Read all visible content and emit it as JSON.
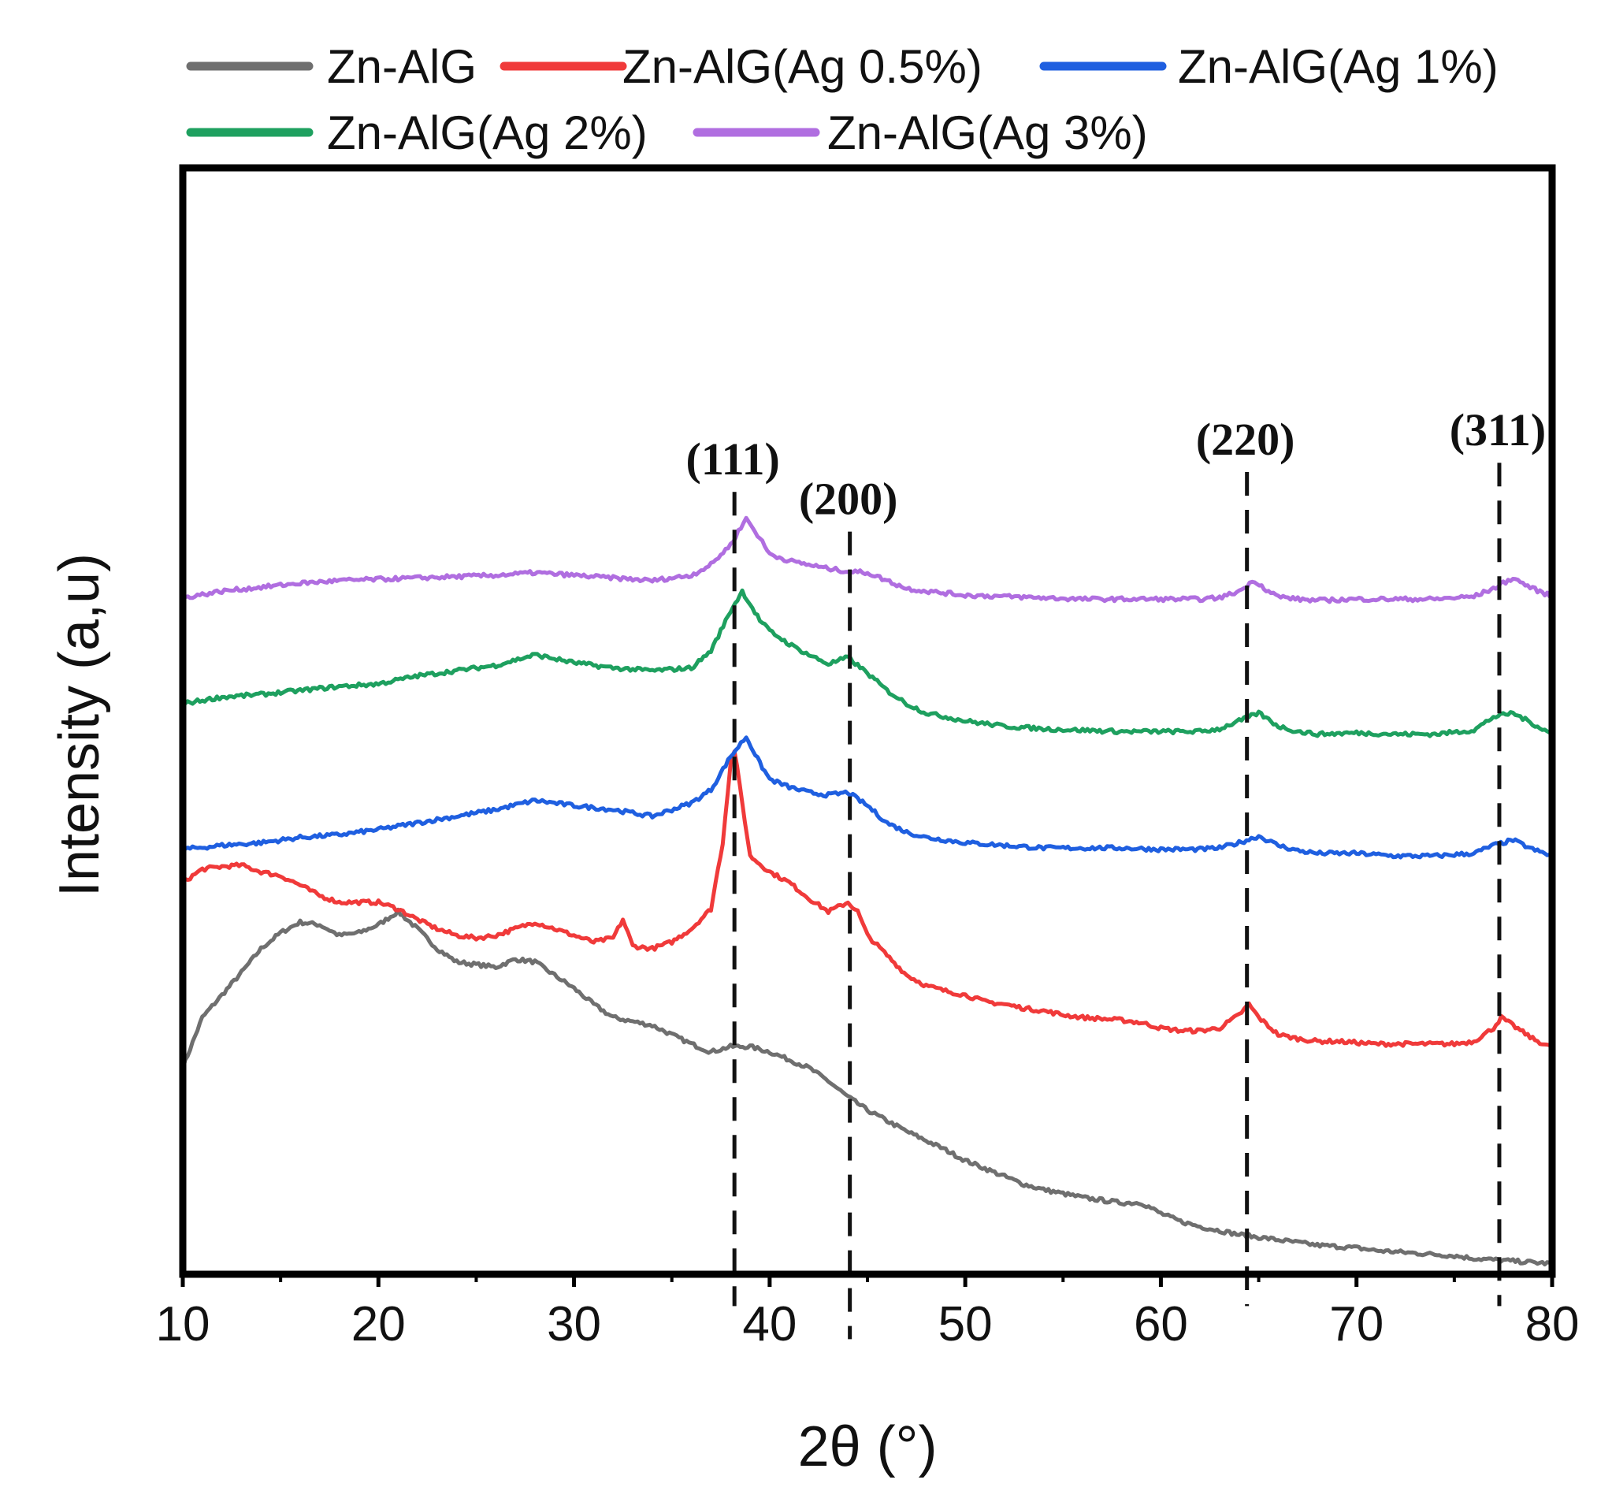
{
  "chart_data": {
    "type": "line",
    "title": "",
    "xlabel": "2θ (°)",
    "ylabel": "Intensity (a,u)",
    "xlim": [
      10,
      80
    ],
    "ylim": [
      0,
      8
    ],
    "x_ticks": [
      10,
      20,
      30,
      40,
      50,
      60,
      70,
      80
    ],
    "x_tick_labels": [
      "10",
      "20",
      "30",
      "40",
      "50",
      "60",
      "70",
      "80"
    ],
    "y_ticks_shown": false,
    "legend_position": "top",
    "series": [
      {
        "name": "Zn-AlG",
        "color": "#6f6f6f",
        "points": [
          [
            10,
            1.5
          ],
          [
            11,
            1.88
          ],
          [
            12,
            2.05
          ],
          [
            13,
            2.22
          ],
          [
            14,
            2.4
          ],
          [
            15,
            2.52
          ],
          [
            16,
            2.6
          ],
          [
            17,
            2.58
          ],
          [
            18,
            2.5
          ],
          [
            19,
            2.52
          ],
          [
            20,
            2.58
          ],
          [
            21,
            2.68
          ],
          [
            22,
            2.55
          ],
          [
            23,
            2.4
          ],
          [
            24,
            2.3
          ],
          [
            25,
            2.28
          ],
          [
            26,
            2.26
          ],
          [
            27,
            2.32
          ],
          [
            28,
            2.3
          ],
          [
            29,
            2.2
          ],
          [
            30,
            2.1
          ],
          [
            31,
            1.98
          ],
          [
            32,
            1.88
          ],
          [
            33,
            1.85
          ],
          [
            34,
            1.82
          ],
          [
            35,
            1.75
          ],
          [
            36,
            1.68
          ],
          [
            37,
            1.62
          ],
          [
            38,
            1.66
          ],
          [
            39,
            1.66
          ],
          [
            40,
            1.62
          ],
          [
            41,
            1.56
          ],
          [
            42,
            1.5
          ],
          [
            43,
            1.4
          ],
          [
            44,
            1.28
          ],
          [
            45,
            1.18
          ],
          [
            46,
            1.1
          ],
          [
            47,
            1.02
          ],
          [
            48,
            0.95
          ],
          [
            49,
            0.88
          ],
          [
            50,
            0.8
          ],
          [
            51,
            0.74
          ],
          [
            52,
            0.68
          ],
          [
            53,
            0.62
          ],
          [
            54,
            0.58
          ],
          [
            55,
            0.55
          ],
          [
            56,
            0.52
          ],
          [
            57,
            0.5
          ],
          [
            58,
            0.48
          ],
          [
            59,
            0.48
          ],
          [
            60,
            0.4
          ],
          [
            61,
            0.34
          ],
          [
            62,
            0.3
          ],
          [
            63,
            0.27
          ],
          [
            64,
            0.24
          ],
          [
            65,
            0.22
          ],
          [
            66,
            0.2
          ],
          [
            67,
            0.18
          ],
          [
            68,
            0.16
          ],
          [
            69,
            0.15
          ],
          [
            70,
            0.14
          ],
          [
            71,
            0.12
          ],
          [
            72,
            0.11
          ],
          [
            73,
            0.1
          ],
          [
            74,
            0.09
          ],
          [
            75,
            0.08
          ],
          [
            76,
            0.06
          ],
          [
            77,
            0.05
          ],
          [
            78,
            0.04
          ],
          [
            79,
            0.03
          ],
          [
            80,
            0.02
          ]
        ]
      },
      {
        "name": "Zn-AlG(Ag 0.5%)",
        "color": "#f03a3a",
        "points": [
          [
            10,
            2.9
          ],
          [
            11,
            3.0
          ],
          [
            12,
            3.02
          ],
          [
            13,
            3.03
          ],
          [
            14,
            2.98
          ],
          [
            15,
            2.95
          ],
          [
            16,
            2.88
          ],
          [
            17,
            2.8
          ],
          [
            18,
            2.75
          ],
          [
            19,
            2.75
          ],
          [
            20,
            2.75
          ],
          [
            21,
            2.7
          ],
          [
            22,
            2.62
          ],
          [
            23,
            2.55
          ],
          [
            24,
            2.5
          ],
          [
            25,
            2.48
          ],
          [
            26,
            2.5
          ],
          [
            27,
            2.55
          ],
          [
            28,
            2.6
          ],
          [
            29,
            2.55
          ],
          [
            30,
            2.5
          ],
          [
            31,
            2.45
          ],
          [
            32,
            2.48
          ],
          [
            32.5,
            2.62
          ],
          [
            33,
            2.42
          ],
          [
            34,
            2.4
          ],
          [
            35,
            2.45
          ],
          [
            36,
            2.55
          ],
          [
            37,
            2.7
          ],
          [
            37.6,
            3.2
          ],
          [
            38,
            3.8
          ],
          [
            38.2,
            3.9
          ],
          [
            38.6,
            3.5
          ],
          [
            39,
            3.1
          ],
          [
            40,
            2.98
          ],
          [
            41,
            2.9
          ],
          [
            42,
            2.78
          ],
          [
            43,
            2.68
          ],
          [
            44,
            2.75
          ],
          [
            44.5,
            2.68
          ],
          [
            45,
            2.5
          ],
          [
            46,
            2.35
          ],
          [
            47,
            2.2
          ],
          [
            48,
            2.12
          ],
          [
            49,
            2.08
          ],
          [
            50,
            2.05
          ],
          [
            51,
            2.0
          ],
          [
            52,
            1.98
          ],
          [
            53,
            1.95
          ],
          [
            54,
            1.93
          ],
          [
            55,
            1.9
          ],
          [
            56,
            1.88
          ],
          [
            57,
            1.87
          ],
          [
            58,
            1.86
          ],
          [
            59,
            1.84
          ],
          [
            60,
            1.8
          ],
          [
            61,
            1.78
          ],
          [
            62,
            1.78
          ],
          [
            63,
            1.8
          ],
          [
            64,
            1.9
          ],
          [
            64.5,
            1.98
          ],
          [
            65,
            1.88
          ],
          [
            66,
            1.75
          ],
          [
            67,
            1.72
          ],
          [
            68,
            1.7
          ],
          [
            69,
            1.7
          ],
          [
            70,
            1.69
          ],
          [
            71,
            1.68
          ],
          [
            72,
            1.68
          ],
          [
            73,
            1.68
          ],
          [
            74,
            1.68
          ],
          [
            75,
            1.68
          ],
          [
            76,
            1.7
          ],
          [
            77,
            1.8
          ],
          [
            77.4,
            1.88
          ],
          [
            78,
            1.82
          ],
          [
            79,
            1.72
          ],
          [
            80,
            1.65
          ]
        ]
      },
      {
        "name": "Zn-AlG(Ag 1%)",
        "color": "#1f5fe0",
        "points": [
          [
            10,
            3.15
          ],
          [
            12,
            3.18
          ],
          [
            14,
            3.2
          ],
          [
            16,
            3.24
          ],
          [
            18,
            3.26
          ],
          [
            20,
            3.3
          ],
          [
            22,
            3.35
          ],
          [
            24,
            3.4
          ],
          [
            26,
            3.45
          ],
          [
            28,
            3.52
          ],
          [
            30,
            3.48
          ],
          [
            32,
            3.45
          ],
          [
            34,
            3.4
          ],
          [
            36,
            3.5
          ],
          [
            37,
            3.6
          ],
          [
            38,
            3.85
          ],
          [
            38.8,
            4.0
          ],
          [
            39.5,
            3.8
          ],
          [
            40,
            3.68
          ],
          [
            41,
            3.62
          ],
          [
            42,
            3.58
          ],
          [
            43,
            3.56
          ],
          [
            44,
            3.58
          ],
          [
            45,
            3.48
          ],
          [
            46,
            3.35
          ],
          [
            47,
            3.28
          ],
          [
            48,
            3.24
          ],
          [
            50,
            3.2
          ],
          [
            52,
            3.18
          ],
          [
            54,
            3.16
          ],
          [
            56,
            3.16
          ],
          [
            58,
            3.16
          ],
          [
            60,
            3.15
          ],
          [
            62,
            3.15
          ],
          [
            63,
            3.16
          ],
          [
            64,
            3.2
          ],
          [
            65,
            3.25
          ],
          [
            66,
            3.18
          ],
          [
            67,
            3.14
          ],
          [
            68,
            3.12
          ],
          [
            70,
            3.12
          ],
          [
            72,
            3.1
          ],
          [
            74,
            3.1
          ],
          [
            76,
            3.12
          ],
          [
            77,
            3.18
          ],
          [
            78,
            3.22
          ],
          [
            79,
            3.15
          ],
          [
            80,
            3.1
          ]
        ]
      },
      {
        "name": "Zn-AlG(Ag 2%)",
        "color": "#1ea05f",
        "points": [
          [
            10,
            4.25
          ],
          [
            12,
            4.3
          ],
          [
            14,
            4.32
          ],
          [
            16,
            4.35
          ],
          [
            18,
            4.38
          ],
          [
            20,
            4.4
          ],
          [
            22,
            4.46
          ],
          [
            24,
            4.5
          ],
          [
            26,
            4.54
          ],
          [
            28,
            4.62
          ],
          [
            30,
            4.56
          ],
          [
            32,
            4.52
          ],
          [
            34,
            4.5
          ],
          [
            36,
            4.52
          ],
          [
            37,
            4.65
          ],
          [
            38,
            4.95
          ],
          [
            38.6,
            5.1
          ],
          [
            39.5,
            4.88
          ],
          [
            40,
            4.8
          ],
          [
            41,
            4.7
          ],
          [
            42,
            4.62
          ],
          [
            43,
            4.55
          ],
          [
            44,
            4.6
          ],
          [
            45,
            4.48
          ],
          [
            46,
            4.35
          ],
          [
            47,
            4.25
          ],
          [
            48,
            4.18
          ],
          [
            50,
            4.12
          ],
          [
            52,
            4.08
          ],
          [
            54,
            4.06
          ],
          [
            56,
            4.05
          ],
          [
            58,
            4.04
          ],
          [
            60,
            4.04
          ],
          [
            62,
            4.04
          ],
          [
            63,
            4.06
          ],
          [
            64,
            4.12
          ],
          [
            65,
            4.18
          ],
          [
            66,
            4.08
          ],
          [
            67,
            4.04
          ],
          [
            68,
            4.02
          ],
          [
            70,
            4.03
          ],
          [
            72,
            4.02
          ],
          [
            74,
            4.02
          ],
          [
            76,
            4.05
          ],
          [
            77,
            4.15
          ],
          [
            78,
            4.18
          ],
          [
            79,
            4.1
          ],
          [
            80,
            4.02
          ]
        ]
      },
      {
        "name": "Zn-AlG(Ag 3%)",
        "color": "#b06ee0",
        "points": [
          [
            10,
            5.05
          ],
          [
            12,
            5.1
          ],
          [
            14,
            5.13
          ],
          [
            16,
            5.16
          ],
          [
            18,
            5.18
          ],
          [
            20,
            5.19
          ],
          [
            22,
            5.2
          ],
          [
            24,
            5.21
          ],
          [
            26,
            5.22
          ],
          [
            28,
            5.24
          ],
          [
            30,
            5.22
          ],
          [
            32,
            5.2
          ],
          [
            34,
            5.18
          ],
          [
            36,
            5.22
          ],
          [
            37,
            5.3
          ],
          [
            38,
            5.45
          ],
          [
            38.8,
            5.65
          ],
          [
            39.5,
            5.5
          ],
          [
            40,
            5.38
          ],
          [
            41,
            5.33
          ],
          [
            42,
            5.3
          ],
          [
            43,
            5.27
          ],
          [
            44,
            5.25
          ],
          [
            45,
            5.24
          ],
          [
            46,
            5.18
          ],
          [
            47,
            5.12
          ],
          [
            48,
            5.1
          ],
          [
            50,
            5.07
          ],
          [
            52,
            5.06
          ],
          [
            54,
            5.05
          ],
          [
            56,
            5.04
          ],
          [
            58,
            5.04
          ],
          [
            60,
            5.04
          ],
          [
            62,
            5.04
          ],
          [
            63,
            5.05
          ],
          [
            64,
            5.1
          ],
          [
            64.8,
            5.18
          ],
          [
            65.5,
            5.1
          ],
          [
            66,
            5.06
          ],
          [
            67,
            5.04
          ],
          [
            68,
            5.03
          ],
          [
            70,
            5.04
          ],
          [
            72,
            5.04
          ],
          [
            74,
            5.04
          ],
          [
            76,
            5.06
          ],
          [
            77,
            5.12
          ],
          [
            78,
            5.2
          ],
          [
            79,
            5.12
          ],
          [
            80,
            5.06
          ]
        ]
      }
    ],
    "peaks": [
      {
        "label": "(111)",
        "x": 38.2,
        "y_bottom": -0.3,
        "y_top": 5.85
      },
      {
        "label": "(200)",
        "x": 44.1,
        "y_bottom": -0.55,
        "y_top": 5.55
      },
      {
        "label": "(220)",
        "x": 64.4,
        "y_bottom": -0.3,
        "y_top": 6.0
      },
      {
        "label": "(311)",
        "x": 77.3,
        "y_bottom": -0.3,
        "y_top": 6.07
      }
    ]
  }
}
